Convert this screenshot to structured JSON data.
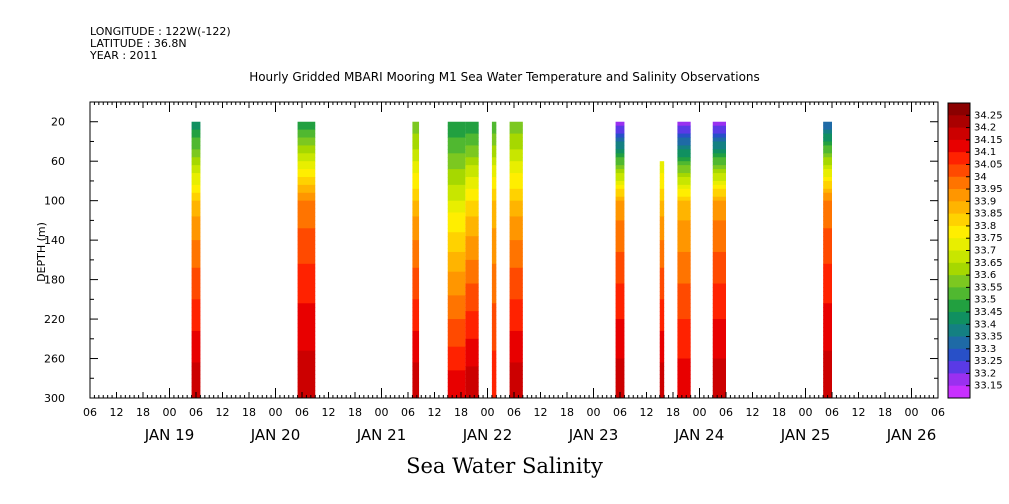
{
  "header": {
    "longitude": "LONGITUDE : 122W(-122)",
    "latitude": "LATITUDE : 36.8N",
    "year": "YEAR : 2011"
  },
  "chart_data": {
    "type": "heatmap",
    "title": "Hourly Gridded MBARI Mooring M1 Sea Water Temperature and Salinity Observations",
    "subtitle": "Sea Water Salinity",
    "xlabel": "",
    "ylabel": "DEPTH (m)",
    "x_unit": "hours since 2011-01-18 06:00",
    "xlim": [
      0,
      192
    ],
    "ylim": [
      300,
      0
    ],
    "y_ticks": [
      20,
      60,
      100,
      140,
      180,
      220,
      260,
      300
    ],
    "x_hour_ticks": [
      "06",
      "12",
      "18",
      "00",
      "06",
      "12",
      "18",
      "00",
      "06",
      "12",
      "18",
      "00",
      "06",
      "12",
      "18",
      "00",
      "06",
      "12",
      "18",
      "00",
      "06",
      "12",
      "18",
      "00",
      "06",
      "12",
      "18",
      "00",
      "06",
      "12",
      "18",
      "00",
      "06"
    ],
    "x_day_labels": [
      {
        "label": "JAN 19",
        "hour": 18
      },
      {
        "label": "JAN 20",
        "hour": 42
      },
      {
        "label": "JAN 21",
        "hour": 66
      },
      {
        "label": "JAN 22",
        "hour": 90
      },
      {
        "label": "JAN 23",
        "hour": 114
      },
      {
        "label": "JAN 24",
        "hour": 138
      },
      {
        "label": "JAN 25",
        "hour": 162
      },
      {
        "label": "JAN 26",
        "hour": 186
      }
    ],
    "colorbar": {
      "levels": [
        "34.25",
        "34.2",
        "34.15",
        "34.1",
        "34.05",
        "34",
        "33.95",
        "33.9",
        "33.85",
        "33.8",
        "33.75",
        "33.7",
        "33.65",
        "33.6",
        "33.55",
        "33.5",
        "33.45",
        "33.4",
        "33.35",
        "33.3",
        "33.25",
        "33.2",
        "33.15"
      ],
      "colors": [
        "#8b0000",
        "#aa0000",
        "#cc0000",
        "#e80000",
        "#ff2200",
        "#ff4a00",
        "#ff7400",
        "#ff9600",
        "#ffb400",
        "#ffd200",
        "#ffee00",
        "#e8ee00",
        "#c8e600",
        "#a6d800",
        "#7cc820",
        "#50b830",
        "#22a040",
        "#109060",
        "#148082",
        "#1e6aa6",
        "#2850c8",
        "#5a3ae6",
        "#9a30f0",
        "#c830ff"
      ]
    },
    "segments": [
      {
        "x0": 23,
        "x1": 25,
        "top": 20,
        "surface": 33.4,
        "mid": 33.85,
        "deep": 34.2
      },
      {
        "x0": 47,
        "x1": 51,
        "top": 20,
        "surface": 33.45,
        "mid": 33.95,
        "deep": 34.2
      },
      {
        "x0": 73,
        "x1": 74.5,
        "top": 20,
        "surface": 33.55,
        "mid": 33.85,
        "deep": 34.2
      },
      {
        "x0": 81,
        "x1": 85,
        "top": 20,
        "surface": 33.45,
        "mid": 33.7,
        "deep": 34.15
      },
      {
        "x0": 85,
        "x1": 88,
        "top": 20,
        "surface": 33.45,
        "mid": 33.8,
        "deep": 34.2
      },
      {
        "x0": 91,
        "x1": 92,
        "top": 20,
        "surface": 33.5,
        "mid": 33.85,
        "deep": 34.1
      },
      {
        "x0": 95,
        "x1": 98,
        "top": 20,
        "surface": 33.55,
        "mid": 33.85,
        "deep": 34.2
      },
      {
        "x0": 119,
        "x1": 121,
        "top": 20,
        "surface": 33.15,
        "mid": 33.9,
        "deep": 34.2
      },
      {
        "x0": 129,
        "x1": 130,
        "top": 60,
        "surface": 33.7,
        "mid": 33.85,
        "deep": 34.2
      },
      {
        "x0": 133,
        "x1": 136,
        "top": 20,
        "surface": 33.15,
        "mid": 33.85,
        "deep": 34.15
      },
      {
        "x0": 141,
        "x1": 144,
        "top": 20,
        "surface": 33.15,
        "mid": 33.9,
        "deep": 34.2
      },
      {
        "x0": 166,
        "x1": 168,
        "top": 20,
        "surface": 33.3,
        "mid": 33.95,
        "deep": 34.2
      }
    ]
  }
}
